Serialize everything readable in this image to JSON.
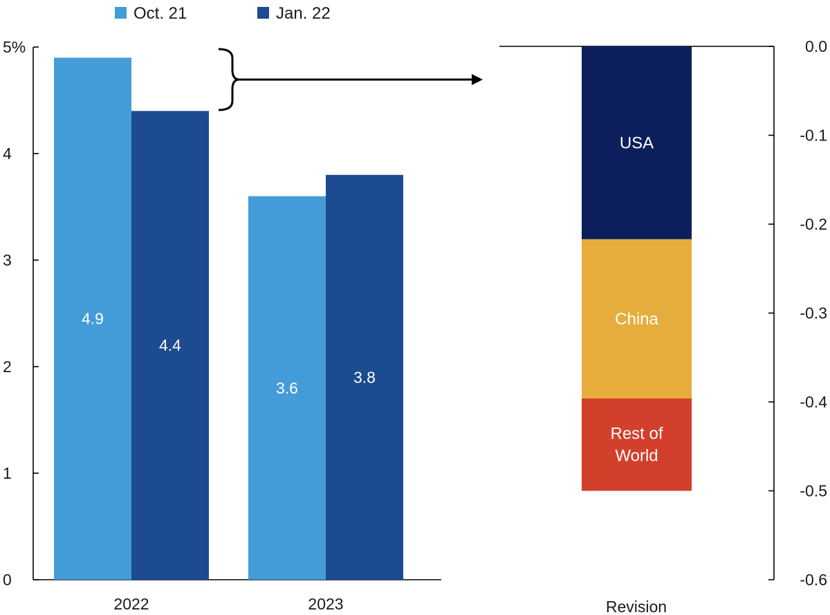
{
  "chart_data": [
    {
      "type": "bar",
      "categories": [
        "2022",
        "2023"
      ],
      "series": [
        {
          "name": "Oct. 21",
          "values": [
            4.9,
            3.6
          ],
          "labels": [
            "4.9",
            "3.6"
          ],
          "color": "#439cd8"
        },
        {
          "name": "Jan. 22",
          "values": [
            4.4,
            3.8
          ],
          "labels": [
            "4.4",
            "3.8"
          ],
          "color": "#1c4b8f"
        }
      ],
      "ylim": [
        0,
        5
      ],
      "yticks": [
        "0",
        "1",
        "2",
        "3",
        "4",
        "5%"
      ],
      "legend": "top",
      "grid": false
    },
    {
      "type": "bar",
      "stacked": true,
      "categories": [
        "Revision"
      ],
      "segments": [
        {
          "name": "USA",
          "value": -0.217,
          "color": "#0c1f5c",
          "text_color": "#ffffff"
        },
        {
          "name": "China",
          "value": -0.179,
          "color": "#e7ad3c",
          "text_color": "#ffffff"
        },
        {
          "name": "Rest of World",
          "lines": [
            "Rest of",
            "World"
          ],
          "value": -0.104,
          "color": "#d23f2b",
          "text_color": "#ffffff"
        }
      ],
      "ylim": [
        -0.6,
        0.0
      ],
      "yticks": [
        "0.0",
        "-0.1",
        "-0.2",
        "-0.3",
        "-0.4",
        "-0.5",
        "-0.6"
      ],
      "yaxis_side": "right",
      "grid": false
    }
  ],
  "colors": {
    "arrow": "#000000",
    "axis": "#000000"
  }
}
